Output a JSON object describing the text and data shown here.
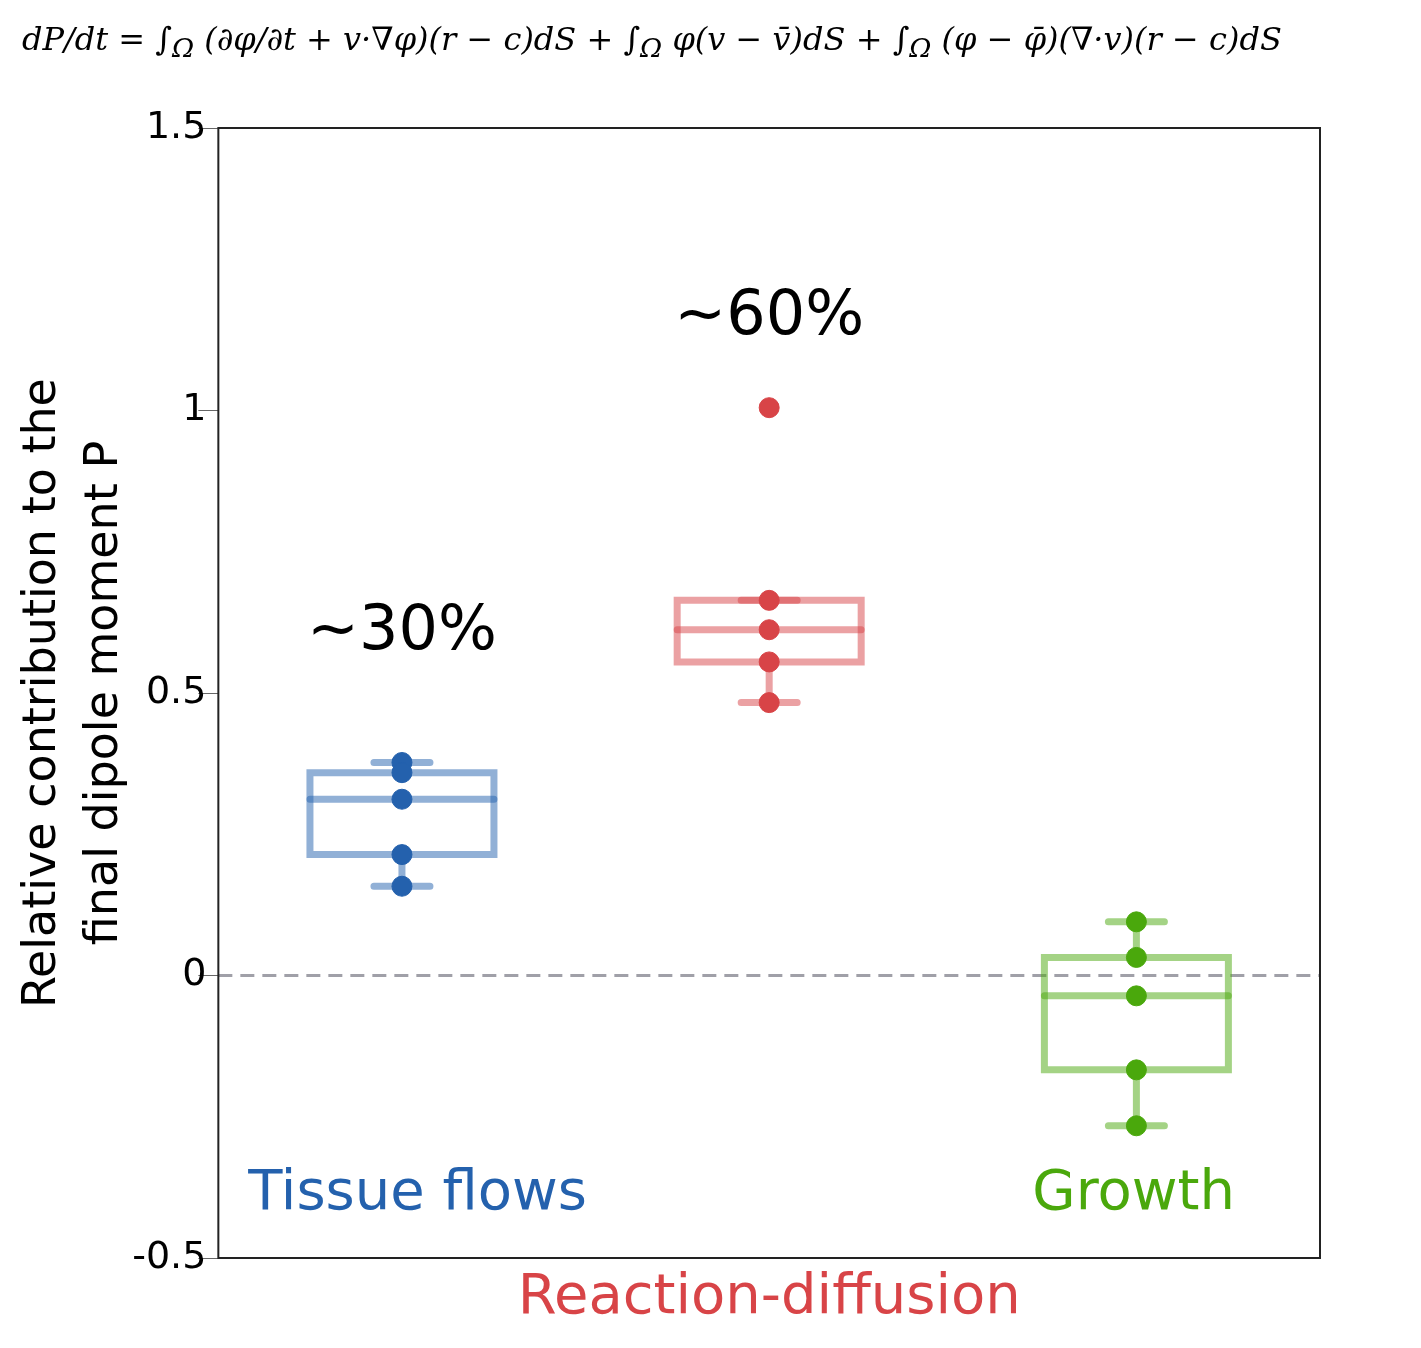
{
  "chart_data": {
    "type": "box",
    "title": "dP/dt = ∫$_{Ω}$ (∂φ/∂t + v·∇φ)(r − c)dS + ∫$_{Ω}$ φ(v − v̄)dS + ∫$_{Ω}$ (φ − φ̄)(∇·v)(r − c)dS",
    "ylabel": "Relative contribution to the final dipole moment P",
    "categories": [
      "Tissue flows",
      "Reaction-diffusion",
      "Growth"
    ],
    "colors": [
      "#2461ad",
      "#d84447",
      "#4aa80c"
    ],
    "boxes": [
      {
        "low": 0.158,
        "q1": 0.214,
        "median": 0.312,
        "q3": 0.359,
        "high": 0.377
      },
      {
        "low": 0.483,
        "q1": 0.555,
        "median": 0.612,
        "q3": 0.664,
        "high": 0.664
      },
      {
        "low": -0.266,
        "q1": -0.167,
        "median": -0.036,
        "q3": 0.032,
        "high": 0.095
      }
    ],
    "series": [
      {
        "type": "scatter",
        "x": [
          "Tissue flows",
          "Tissue flows",
          "Tissue flows",
          "Tissue flows",
          "Tissue flows",
          "Reaction-diffusion",
          "Reaction-diffusion",
          "Reaction-diffusion",
          "Reaction-diffusion",
          "Reaction-diffusion",
          "Growth",
          "Growth",
          "Growth",
          "Growth",
          "Growth"
        ],
        "values": [
          0.377,
          0.359,
          0.312,
          0.214,
          0.158,
          1.005,
          0.664,
          0.612,
          0.555,
          0.483,
          0.095,
          0.032,
          -0.036,
          -0.167,
          -0.266
        ],
        "colors": [
          "#2461ad",
          "#2461ad",
          "#2461ad",
          "#2461ad",
          "#2461ad",
          "#d84447",
          "#d84447",
          "#d84447",
          "#d84447",
          "#d84447",
          "#4aa80c",
          "#4aa80c",
          "#4aa80c",
          "#4aa80c",
          "#4aa80c"
        ]
      }
    ],
    "annotations": [
      "~30%",
      "~60%"
    ],
    "ref_lines": [
      {
        "axis": "y",
        "value": 0,
        "color": "#a0a0a8",
        "line_style": "dashed"
      }
    ],
    "ylim": [
      -0.5,
      1.5
    ],
    "yticks": [
      -0.5,
      0,
      0.5,
      1,
      1.5
    ],
    "grid": false,
    "legend": false,
    "marker": "circle"
  }
}
